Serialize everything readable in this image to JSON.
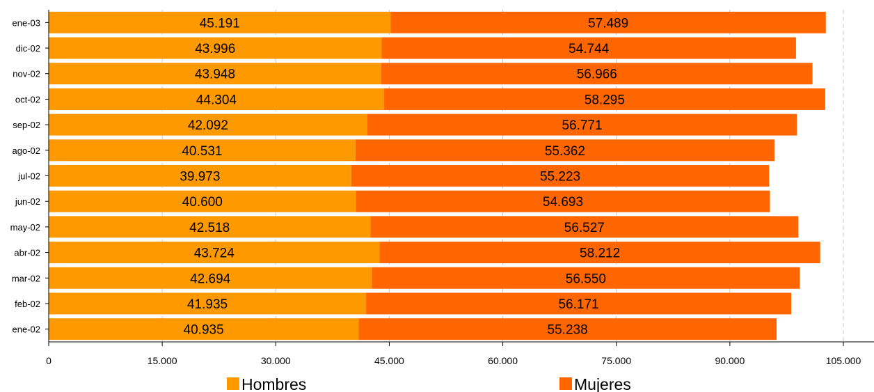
{
  "chart_data": {
    "type": "bar",
    "orientation": "horizontal",
    "stacked": true,
    "categories": [
      "ene-03",
      "dic-02",
      "nov-02",
      "oct-02",
      "sep-02",
      "ago-02",
      "jul-02",
      "jun-02",
      "may-02",
      "abr-02",
      "mar-02",
      "feb-02",
      "ene-02"
    ],
    "series": [
      {
        "name": "Hombres",
        "color": "#FF9900",
        "values": [
          45191,
          43996,
          43948,
          44304,
          42092,
          40531,
          39973,
          40600,
          42518,
          43724,
          42694,
          41935,
          40935
        ],
        "labels": [
          "45.191",
          "43.996",
          "43.948",
          "44.304",
          "42.092",
          "40.531",
          "39.973",
          "40.600",
          "42.518",
          "43.724",
          "42.694",
          "41.935",
          "40.935"
        ]
      },
      {
        "name": "Mujeres",
        "color": "#FF6600",
        "values": [
          57489,
          54744,
          56966,
          58295,
          56771,
          55362,
          55223,
          54693,
          56527,
          58212,
          56550,
          56171,
          55238
        ],
        "labels": [
          "57.489",
          "54.744",
          "56.966",
          "58.295",
          "56.771",
          "55.362",
          "55.223",
          "54.693",
          "56.527",
          "58.212",
          "56.550",
          "56.171",
          "55.238"
        ]
      }
    ],
    "xlim": [
      0,
      105000
    ],
    "x_ticks": [
      0,
      15000,
      30000,
      45000,
      60000,
      75000,
      90000,
      105000
    ],
    "x_tick_labels": [
      "0",
      "15.000",
      "30.000",
      "45.000",
      "60.000",
      "75.000",
      "90.000",
      "105.000"
    ],
    "grid": "vertical-dashed",
    "legend": "bottom"
  }
}
